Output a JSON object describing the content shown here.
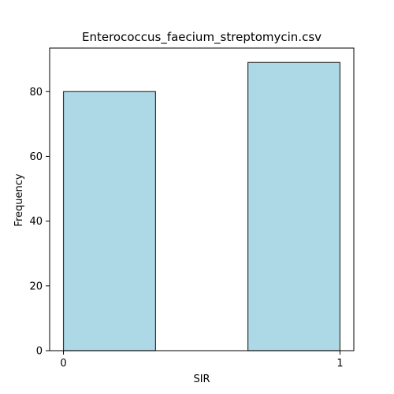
{
  "chart_data": {
    "type": "bar",
    "title": "Enterococcus_faecium_streptomycin.csv",
    "xlabel": "SIR",
    "ylabel": "Frequency",
    "bins": [
      {
        "start": 0,
        "end": 0.333,
        "value": 80
      },
      {
        "start": 0.667,
        "end": 1,
        "value": 89
      }
    ],
    "xlim": [
      -0.05,
      1.05
    ],
    "ylim": [
      0,
      93.45
    ],
    "xticks": [
      0,
      1
    ],
    "xtick_labels": [
      "0",
      "1"
    ],
    "yticks": [
      0,
      20,
      40,
      60,
      80
    ],
    "ytick_labels": [
      "0",
      "20",
      "40",
      "60",
      "80"
    ],
    "grid": false,
    "bar_color": "#add8e6",
    "edge_color": "#333333"
  }
}
